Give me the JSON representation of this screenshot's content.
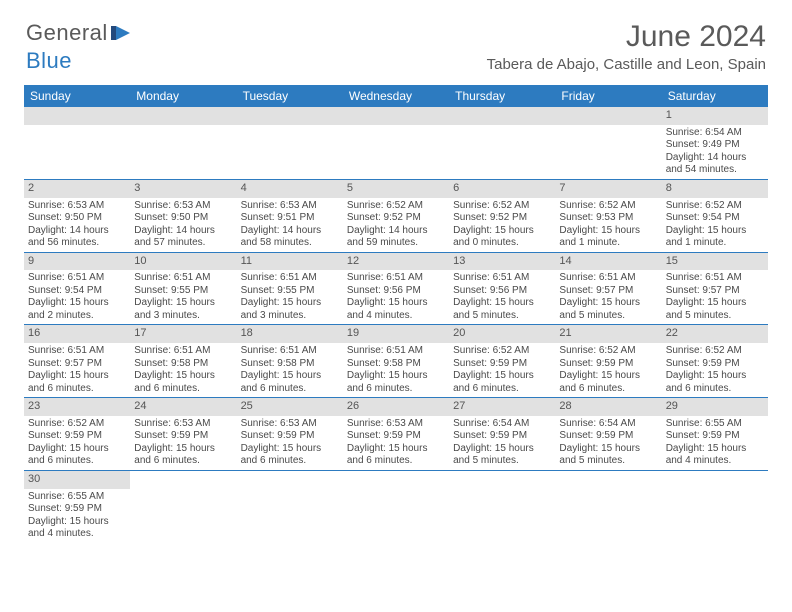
{
  "header": {
    "logo_general": "General",
    "logo_blue": "Blue",
    "month_title": "June 2024",
    "location": "Tabera de Abajo, Castille and Leon, Spain"
  },
  "colors": {
    "accent": "#2d7bc0",
    "header_bg": "#2d7bc0",
    "header_fg": "#ffffff",
    "daynum_bg": "#e1e1e1",
    "text": "#4a4a4a",
    "title": "#5a5a5a"
  },
  "daynames": [
    "Sunday",
    "Monday",
    "Tuesday",
    "Wednesday",
    "Thursday",
    "Friday",
    "Saturday"
  ],
  "weeks": [
    [
      null,
      null,
      null,
      null,
      null,
      null,
      {
        "n": "1",
        "sr": "Sunrise: 6:54 AM",
        "ss": "Sunset: 9:49 PM",
        "dl": "Daylight: 14 hours and 54 minutes."
      }
    ],
    [
      {
        "n": "2",
        "sr": "Sunrise: 6:53 AM",
        "ss": "Sunset: 9:50 PM",
        "dl": "Daylight: 14 hours and 56 minutes."
      },
      {
        "n": "3",
        "sr": "Sunrise: 6:53 AM",
        "ss": "Sunset: 9:50 PM",
        "dl": "Daylight: 14 hours and 57 minutes."
      },
      {
        "n": "4",
        "sr": "Sunrise: 6:53 AM",
        "ss": "Sunset: 9:51 PM",
        "dl": "Daylight: 14 hours and 58 minutes."
      },
      {
        "n": "5",
        "sr": "Sunrise: 6:52 AM",
        "ss": "Sunset: 9:52 PM",
        "dl": "Daylight: 14 hours and 59 minutes."
      },
      {
        "n": "6",
        "sr": "Sunrise: 6:52 AM",
        "ss": "Sunset: 9:52 PM",
        "dl": "Daylight: 15 hours and 0 minutes."
      },
      {
        "n": "7",
        "sr": "Sunrise: 6:52 AM",
        "ss": "Sunset: 9:53 PM",
        "dl": "Daylight: 15 hours and 1 minute."
      },
      {
        "n": "8",
        "sr": "Sunrise: 6:52 AM",
        "ss": "Sunset: 9:54 PM",
        "dl": "Daylight: 15 hours and 1 minute."
      }
    ],
    [
      {
        "n": "9",
        "sr": "Sunrise: 6:51 AM",
        "ss": "Sunset: 9:54 PM",
        "dl": "Daylight: 15 hours and 2 minutes."
      },
      {
        "n": "10",
        "sr": "Sunrise: 6:51 AM",
        "ss": "Sunset: 9:55 PM",
        "dl": "Daylight: 15 hours and 3 minutes."
      },
      {
        "n": "11",
        "sr": "Sunrise: 6:51 AM",
        "ss": "Sunset: 9:55 PM",
        "dl": "Daylight: 15 hours and 3 minutes."
      },
      {
        "n": "12",
        "sr": "Sunrise: 6:51 AM",
        "ss": "Sunset: 9:56 PM",
        "dl": "Daylight: 15 hours and 4 minutes."
      },
      {
        "n": "13",
        "sr": "Sunrise: 6:51 AM",
        "ss": "Sunset: 9:56 PM",
        "dl": "Daylight: 15 hours and 5 minutes."
      },
      {
        "n": "14",
        "sr": "Sunrise: 6:51 AM",
        "ss": "Sunset: 9:57 PM",
        "dl": "Daylight: 15 hours and 5 minutes."
      },
      {
        "n": "15",
        "sr": "Sunrise: 6:51 AM",
        "ss": "Sunset: 9:57 PM",
        "dl": "Daylight: 15 hours and 5 minutes."
      }
    ],
    [
      {
        "n": "16",
        "sr": "Sunrise: 6:51 AM",
        "ss": "Sunset: 9:57 PM",
        "dl": "Daylight: 15 hours and 6 minutes."
      },
      {
        "n": "17",
        "sr": "Sunrise: 6:51 AM",
        "ss": "Sunset: 9:58 PM",
        "dl": "Daylight: 15 hours and 6 minutes."
      },
      {
        "n": "18",
        "sr": "Sunrise: 6:51 AM",
        "ss": "Sunset: 9:58 PM",
        "dl": "Daylight: 15 hours and 6 minutes."
      },
      {
        "n": "19",
        "sr": "Sunrise: 6:51 AM",
        "ss": "Sunset: 9:58 PM",
        "dl": "Daylight: 15 hours and 6 minutes."
      },
      {
        "n": "20",
        "sr": "Sunrise: 6:52 AM",
        "ss": "Sunset: 9:59 PM",
        "dl": "Daylight: 15 hours and 6 minutes."
      },
      {
        "n": "21",
        "sr": "Sunrise: 6:52 AM",
        "ss": "Sunset: 9:59 PM",
        "dl": "Daylight: 15 hours and 6 minutes."
      },
      {
        "n": "22",
        "sr": "Sunrise: 6:52 AM",
        "ss": "Sunset: 9:59 PM",
        "dl": "Daylight: 15 hours and 6 minutes."
      }
    ],
    [
      {
        "n": "23",
        "sr": "Sunrise: 6:52 AM",
        "ss": "Sunset: 9:59 PM",
        "dl": "Daylight: 15 hours and 6 minutes."
      },
      {
        "n": "24",
        "sr": "Sunrise: 6:53 AM",
        "ss": "Sunset: 9:59 PM",
        "dl": "Daylight: 15 hours and 6 minutes."
      },
      {
        "n": "25",
        "sr": "Sunrise: 6:53 AM",
        "ss": "Sunset: 9:59 PM",
        "dl": "Daylight: 15 hours and 6 minutes."
      },
      {
        "n": "26",
        "sr": "Sunrise: 6:53 AM",
        "ss": "Sunset: 9:59 PM",
        "dl": "Daylight: 15 hours and 6 minutes."
      },
      {
        "n": "27",
        "sr": "Sunrise: 6:54 AM",
        "ss": "Sunset: 9:59 PM",
        "dl": "Daylight: 15 hours and 5 minutes."
      },
      {
        "n": "28",
        "sr": "Sunrise: 6:54 AM",
        "ss": "Sunset: 9:59 PM",
        "dl": "Daylight: 15 hours and 5 minutes."
      },
      {
        "n": "29",
        "sr": "Sunrise: 6:55 AM",
        "ss": "Sunset: 9:59 PM",
        "dl": "Daylight: 15 hours and 4 minutes."
      }
    ],
    [
      {
        "n": "30",
        "sr": "Sunrise: 6:55 AM",
        "ss": "Sunset: 9:59 PM",
        "dl": "Daylight: 15 hours and 4 minutes."
      },
      null,
      null,
      null,
      null,
      null,
      null
    ]
  ]
}
